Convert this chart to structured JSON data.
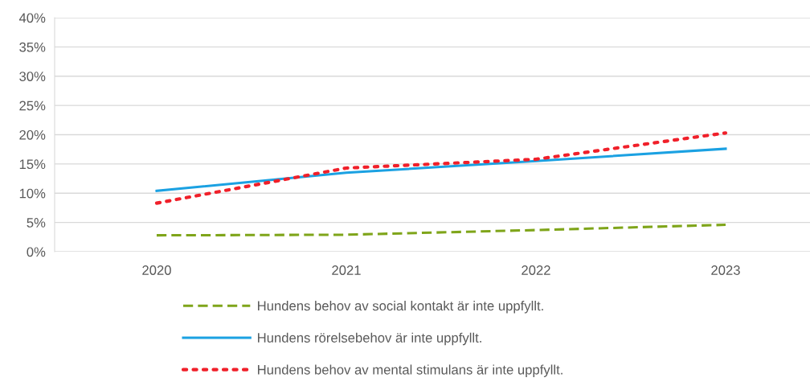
{
  "chart_data": {
    "type": "line",
    "categories": [
      "2020",
      "2021",
      "2022",
      "2023"
    ],
    "series": [
      {
        "name": "Hundens behov av social kontakt är inte uppfyllt.",
        "color": "#7fa51a",
        "line_style": "dashed",
        "values": [
          2.8,
          2.9,
          3.7,
          4.6
        ]
      },
      {
        "name": "Hundens rörelsebehov är inte uppfyllt.",
        "color": "#1ba1e2",
        "line_style": "solid",
        "values": [
          10.4,
          13.5,
          15.5,
          17.6
        ]
      },
      {
        "name": "Hundens behov av mental stimulans är inte uppfyllt.",
        "color": "#f0202a",
        "line_style": "dotted",
        "values": [
          8.3,
          14.3,
          15.8,
          20.3
        ]
      }
    ],
    "ylim": [
      0,
      40
    ],
    "yticks": [
      {
        "value": 0,
        "label": "0%"
      },
      {
        "value": 5,
        "label": "5%"
      },
      {
        "value": 10,
        "label": "10%"
      },
      {
        "value": 15,
        "label": "15%"
      },
      {
        "value": 20,
        "label": "20%"
      },
      {
        "value": 25,
        "label": "25%"
      },
      {
        "value": 30,
        "label": "30%"
      },
      {
        "value": 35,
        "label": "35%"
      },
      {
        "value": 40,
        "label": "40%"
      }
    ],
    "grid": "y",
    "legend": "bottom",
    "marker": "none"
  }
}
